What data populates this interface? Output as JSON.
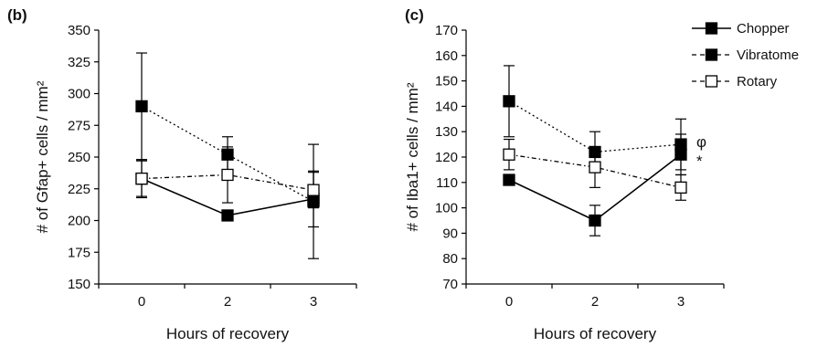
{
  "chart_data": [
    {
      "type": "line",
      "panel_label": "(b)",
      "ylabel": "# of Gfap+ cells / mm²",
      "xlabel": "Hours of recovery",
      "x": [
        "0",
        "2",
        "3"
      ],
      "ylim": [
        150,
        350
      ],
      "yticks": [
        "150",
        "175",
        "200",
        "225",
        "250",
        "275",
        "300",
        "325",
        "350"
      ],
      "series": [
        {
          "name": "Chopper",
          "values": [
            233,
            204,
            217
          ],
          "errors": [
            15,
            0,
            22
          ]
        },
        {
          "name": "Vibratome",
          "values": [
            290,
            252,
            215
          ],
          "errors": [
            42,
            14,
            45
          ]
        },
        {
          "name": "Rotary",
          "values": [
            233,
            236,
            224
          ],
          "errors": [
            14,
            22,
            14
          ]
        }
      ]
    },
    {
      "type": "line",
      "panel_label": "(c)",
      "ylabel": "# of Iba1+ cells / mm²",
      "xlabel": "Hours of recovery",
      "x": [
        "0",
        "2",
        "3"
      ],
      "ylim": [
        70,
        170
      ],
      "yticks": [
        "70",
        "80",
        "90",
        "100",
        "110",
        "120",
        "130",
        "140",
        "150",
        "160",
        "170"
      ],
      "series": [
        {
          "name": "Chopper",
          "values": [
            111,
            95,
            121
          ],
          "errors": [
            0,
            6,
            8
          ]
        },
        {
          "name": "Vibratome",
          "values": [
            142,
            122,
            125
          ],
          "errors": [
            14,
            8,
            10
          ]
        },
        {
          "name": "Rotary",
          "values": [
            121,
            116,
            108
          ],
          "errors": [
            6,
            8,
            5
          ]
        }
      ],
      "annotations": [
        "φ",
        "*"
      ]
    }
  ],
  "legend": {
    "placement": "top-right",
    "items": [
      {
        "name": "Chopper",
        "line": "solid",
        "marker": "filled-square"
      },
      {
        "name": "Vibratome",
        "line": "dashed",
        "marker": "filled-square"
      },
      {
        "name": "Rotary",
        "line": "dashed",
        "marker": "open-square"
      }
    ]
  }
}
